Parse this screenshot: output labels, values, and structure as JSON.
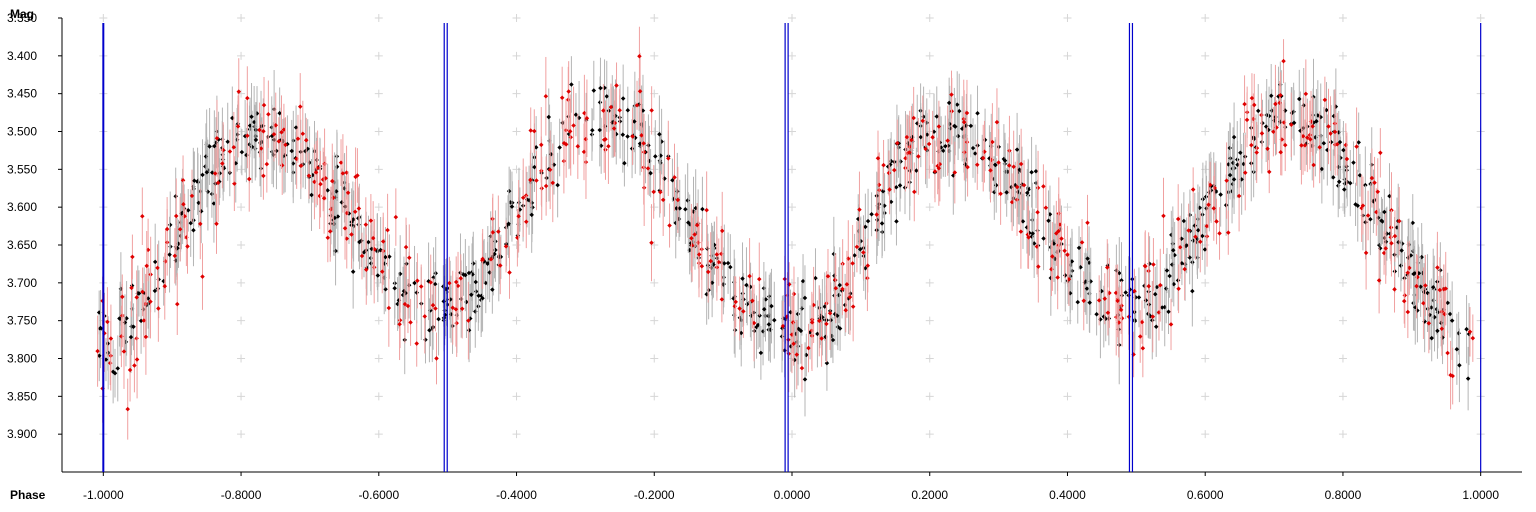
{
  "chart_data": {
    "type": "scatter",
    "title": "",
    "xlabel": "Phase",
    "ylabel": "Mag",
    "xlim": [
      -1.06,
      1.06
    ],
    "ylim": [
      3.35,
      3.95
    ],
    "y_inverted": true,
    "grid": "plus markers",
    "xticks": [
      -1.0,
      -0.8,
      -0.6,
      -0.4,
      -0.2,
      0.0,
      0.2,
      0.4,
      0.6,
      0.8,
      1.0
    ],
    "xtick_labels": [
      "-1.0000",
      "-0.8000",
      "-0.6000",
      "-0.4000",
      "-0.2000",
      "0.0000",
      "0.2000",
      "0.4000",
      "0.6000",
      "0.8000",
      "1.0000"
    ],
    "yticks": [
      3.35,
      3.4,
      3.45,
      3.5,
      3.55,
      3.6,
      3.65,
      3.7,
      3.75,
      3.8,
      3.85,
      3.9
    ],
    "ytick_labels": [
      "3.350",
      "3.400",
      "3.450",
      "3.500",
      "3.550",
      "3.600",
      "3.650",
      "3.700",
      "3.750",
      "3.800",
      "3.850",
      "3.900"
    ],
    "phase_lines": [
      -1.0,
      -0.505,
      -0.505,
      -0.01,
      -0.01,
      0.49,
      0.49,
      1.0
    ],
    "phase_line_color": "#0000cc",
    "series_colors": {
      "black": "#000000",
      "red": "#e00000"
    },
    "errorbar_colors": {
      "black": "#b4b4b4",
      "red": "#f0a0a0"
    },
    "curve": {
      "description_points_phase": [
        0.0,
        0.24,
        0.49,
        0.75,
        1.0
      ],
      "mean_mag": 3.62,
      "primary_amplitude": 0.14,
      "secondary_dip_mag": 3.73,
      "max_mags": [
        3.5,
        3.48
      ],
      "scatter_sigma": 0.025,
      "errorbar_halfwidth": 0.04,
      "points_per_series": 900
    }
  }
}
